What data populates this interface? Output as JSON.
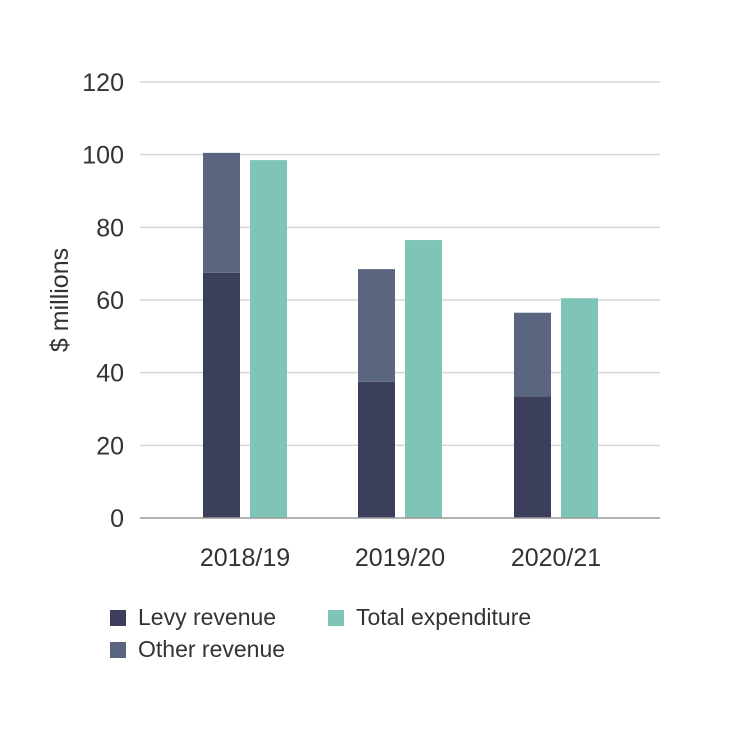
{
  "chart_data": {
    "type": "bar",
    "stacked_with_side_bar": true,
    "categories": [
      "2018/19",
      "2019/20",
      "2020/21"
    ],
    "series": [
      {
        "name": "Levy revenue",
        "stack": "revenue",
        "color": "#3b3f5c",
        "values": [
          67.5,
          37.5,
          33.5
        ]
      },
      {
        "name": "Other revenue",
        "stack": "revenue",
        "color": "#5a6580",
        "values": [
          33,
          31,
          23
        ]
      },
      {
        "name": "Total expenditure",
        "stack": "expenditure",
        "color": "#7ec5b7",
        "values": [
          98.5,
          76.5,
          60.5
        ]
      }
    ],
    "title": "",
    "xlabel": "",
    "ylabel": "$ millions",
    "ylim": [
      0,
      120
    ],
    "yticks": [
      0,
      20,
      40,
      60,
      80,
      100,
      120
    ],
    "grid": true,
    "legend": "bottom"
  },
  "colors": {
    "grid": "#d6d6d6",
    "axis": "#9a9a9a"
  }
}
